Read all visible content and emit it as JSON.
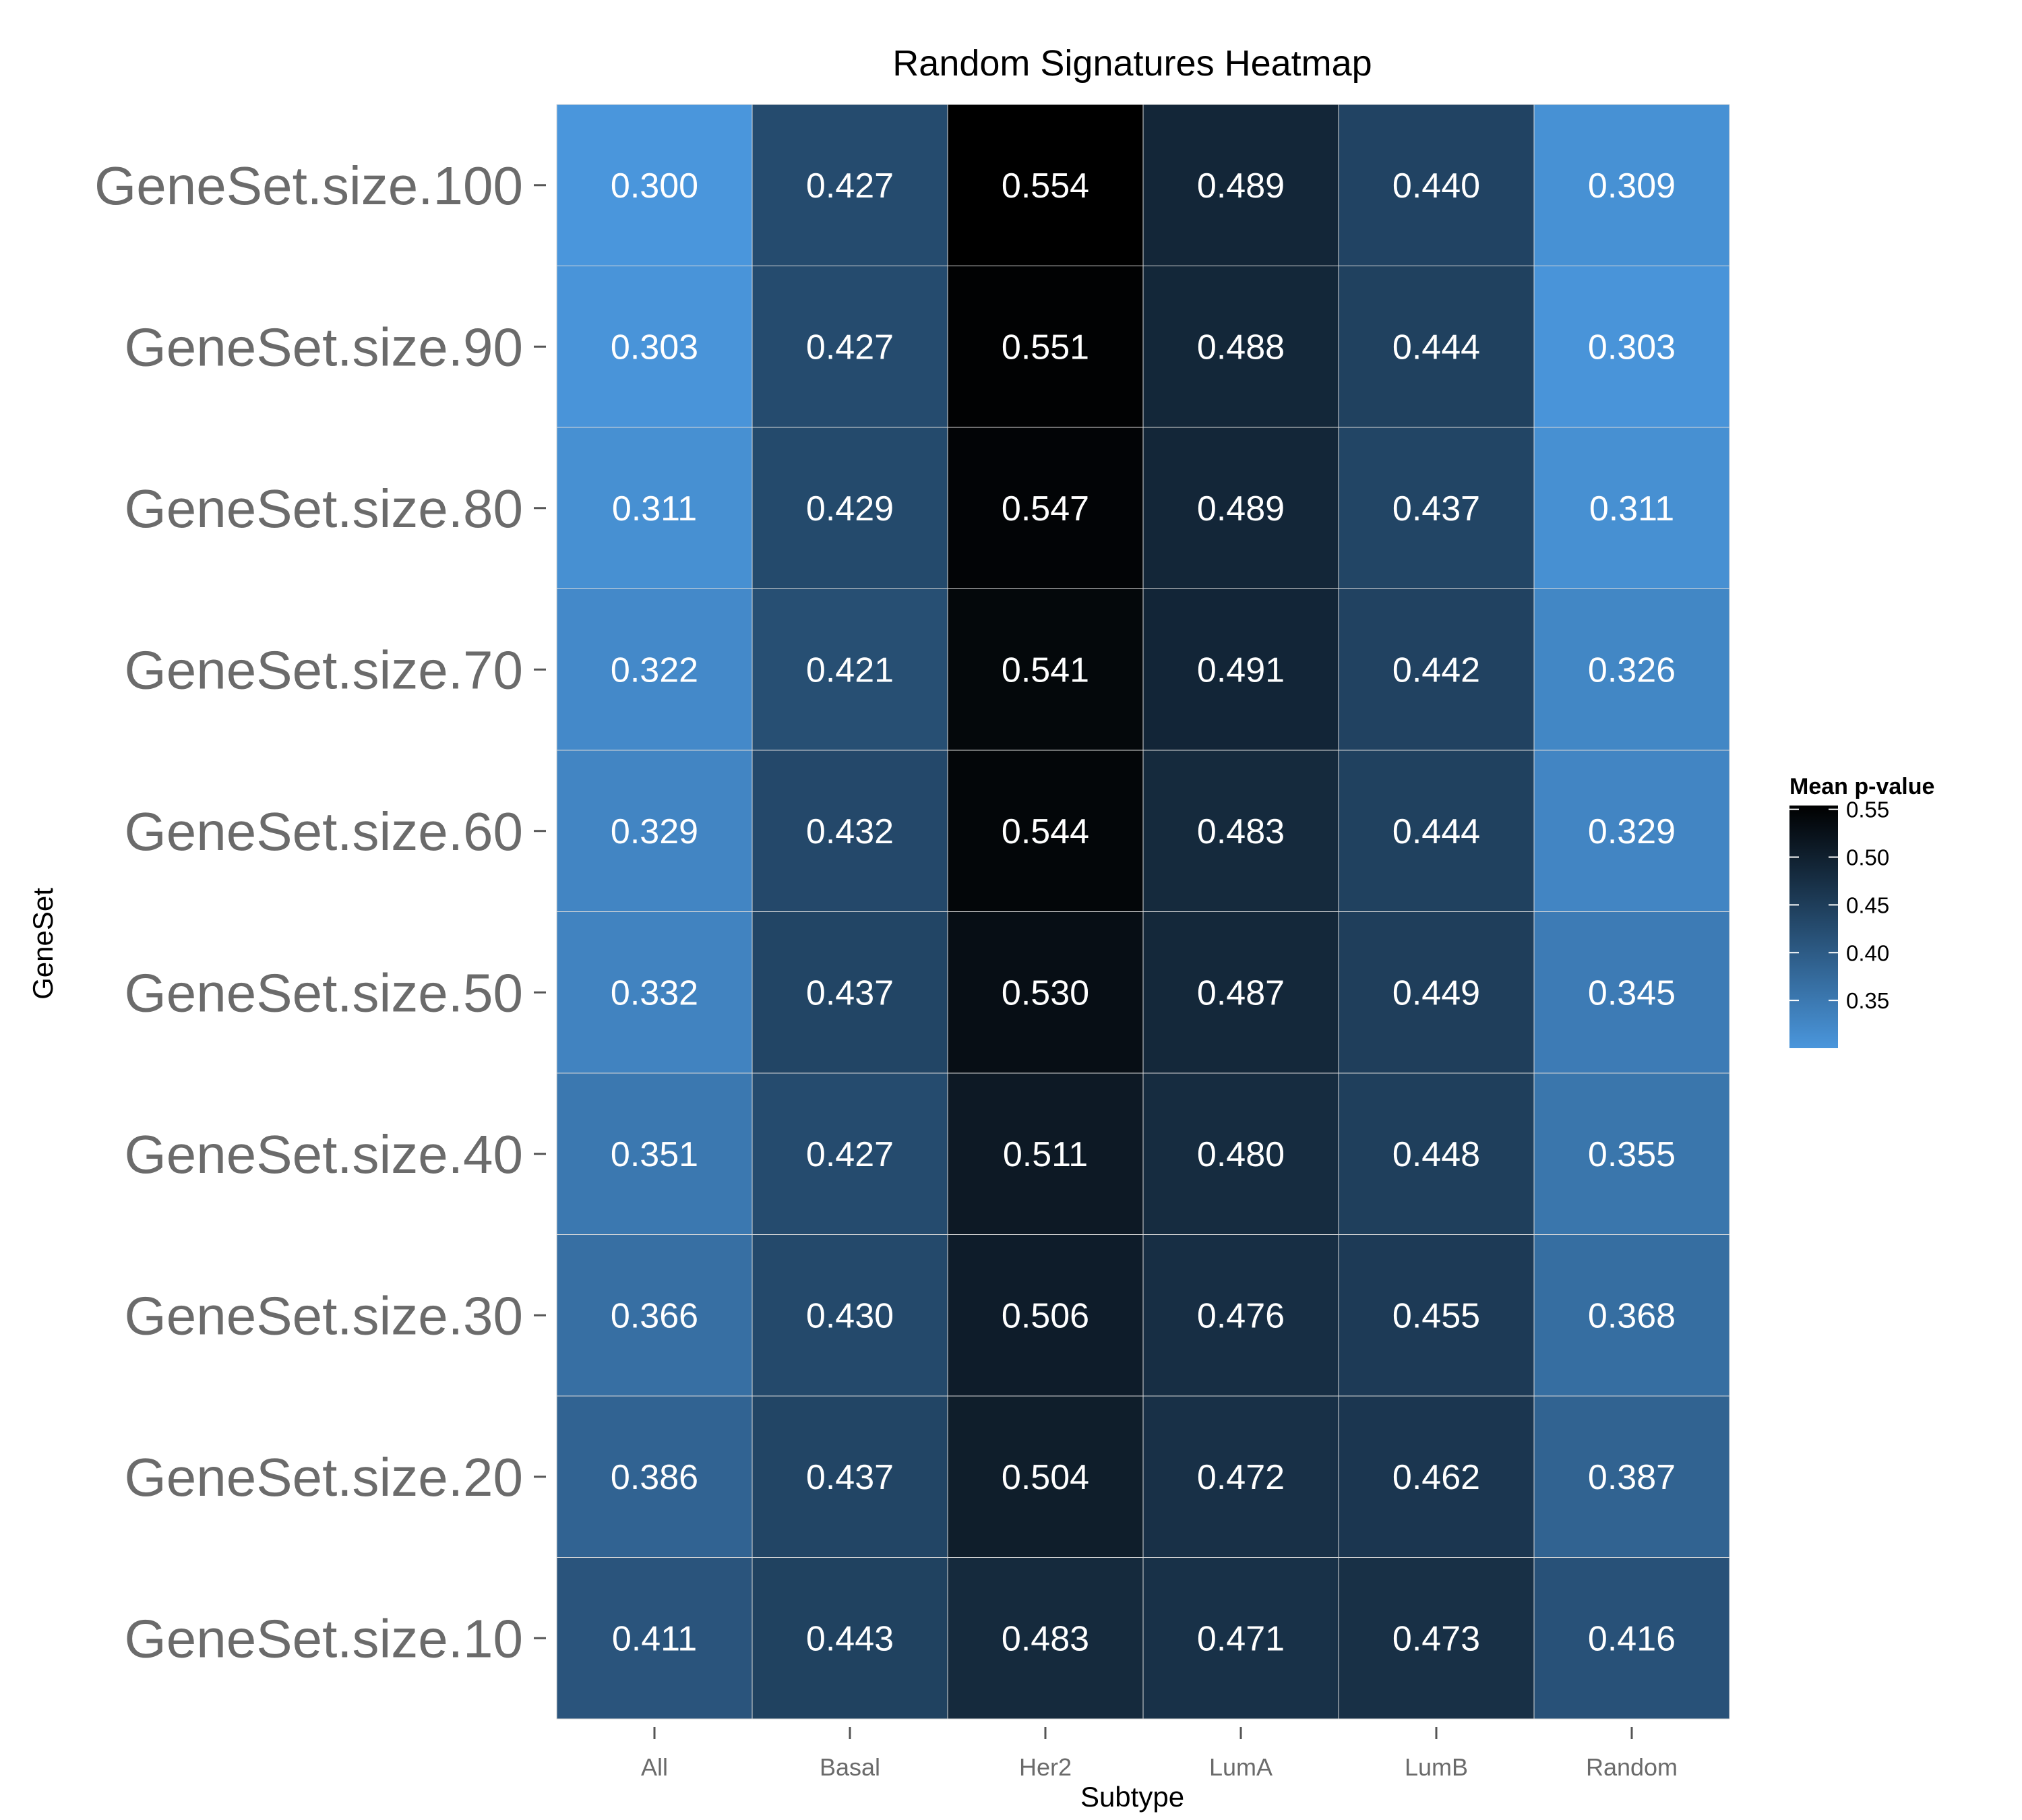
{
  "chart_data": {
    "type": "heatmap",
    "title": "Random Signatures Heatmap",
    "xlabel": "Subtype",
    "ylabel": "GeneSet",
    "x_categories": [
      "All",
      "Basal",
      "Her2",
      "LumA",
      "LumB",
      "Random"
    ],
    "y_categories": [
      "GeneSet.size.100",
      "GeneSet.size.90",
      "GeneSet.size.80",
      "GeneSet.size.70",
      "GeneSet.size.60",
      "GeneSet.size.50",
      "GeneSet.size.40",
      "GeneSet.size.30",
      "GeneSet.size.20",
      "GeneSet.size.10"
    ],
    "values": [
      [
        "0.300",
        "0.427",
        "0.554",
        "0.489",
        "0.440",
        "0.309"
      ],
      [
        "0.303",
        "0.427",
        "0.551",
        "0.488",
        "0.444",
        "0.303"
      ],
      [
        "0.311",
        "0.429",
        "0.547",
        "0.489",
        "0.437",
        "0.311"
      ],
      [
        "0.322",
        "0.421",
        "0.541",
        "0.491",
        "0.442",
        "0.326"
      ],
      [
        "0.329",
        "0.432",
        "0.544",
        "0.483",
        "0.444",
        "0.329"
      ],
      [
        "0.332",
        "0.437",
        "0.530",
        "0.487",
        "0.449",
        "0.345"
      ],
      [
        "0.351",
        "0.427",
        "0.511",
        "0.480",
        "0.448",
        "0.355"
      ],
      [
        "0.366",
        "0.430",
        "0.506",
        "0.476",
        "0.455",
        "0.368"
      ],
      [
        "0.386",
        "0.437",
        "0.504",
        "0.472",
        "0.462",
        "0.387"
      ],
      [
        "0.411",
        "0.443",
        "0.483",
        "0.471",
        "0.473",
        "0.416"
      ]
    ],
    "legend": {
      "title": "Mean p-value",
      "placement": "right",
      "range": [
        0.3,
        0.554
      ],
      "ticks": [
        "0.35",
        "0.40",
        "0.45",
        "0.50",
        "0.55"
      ],
      "low_color": "#4A96DC",
      "high_color": "#000000"
    },
    "grid": false
  }
}
